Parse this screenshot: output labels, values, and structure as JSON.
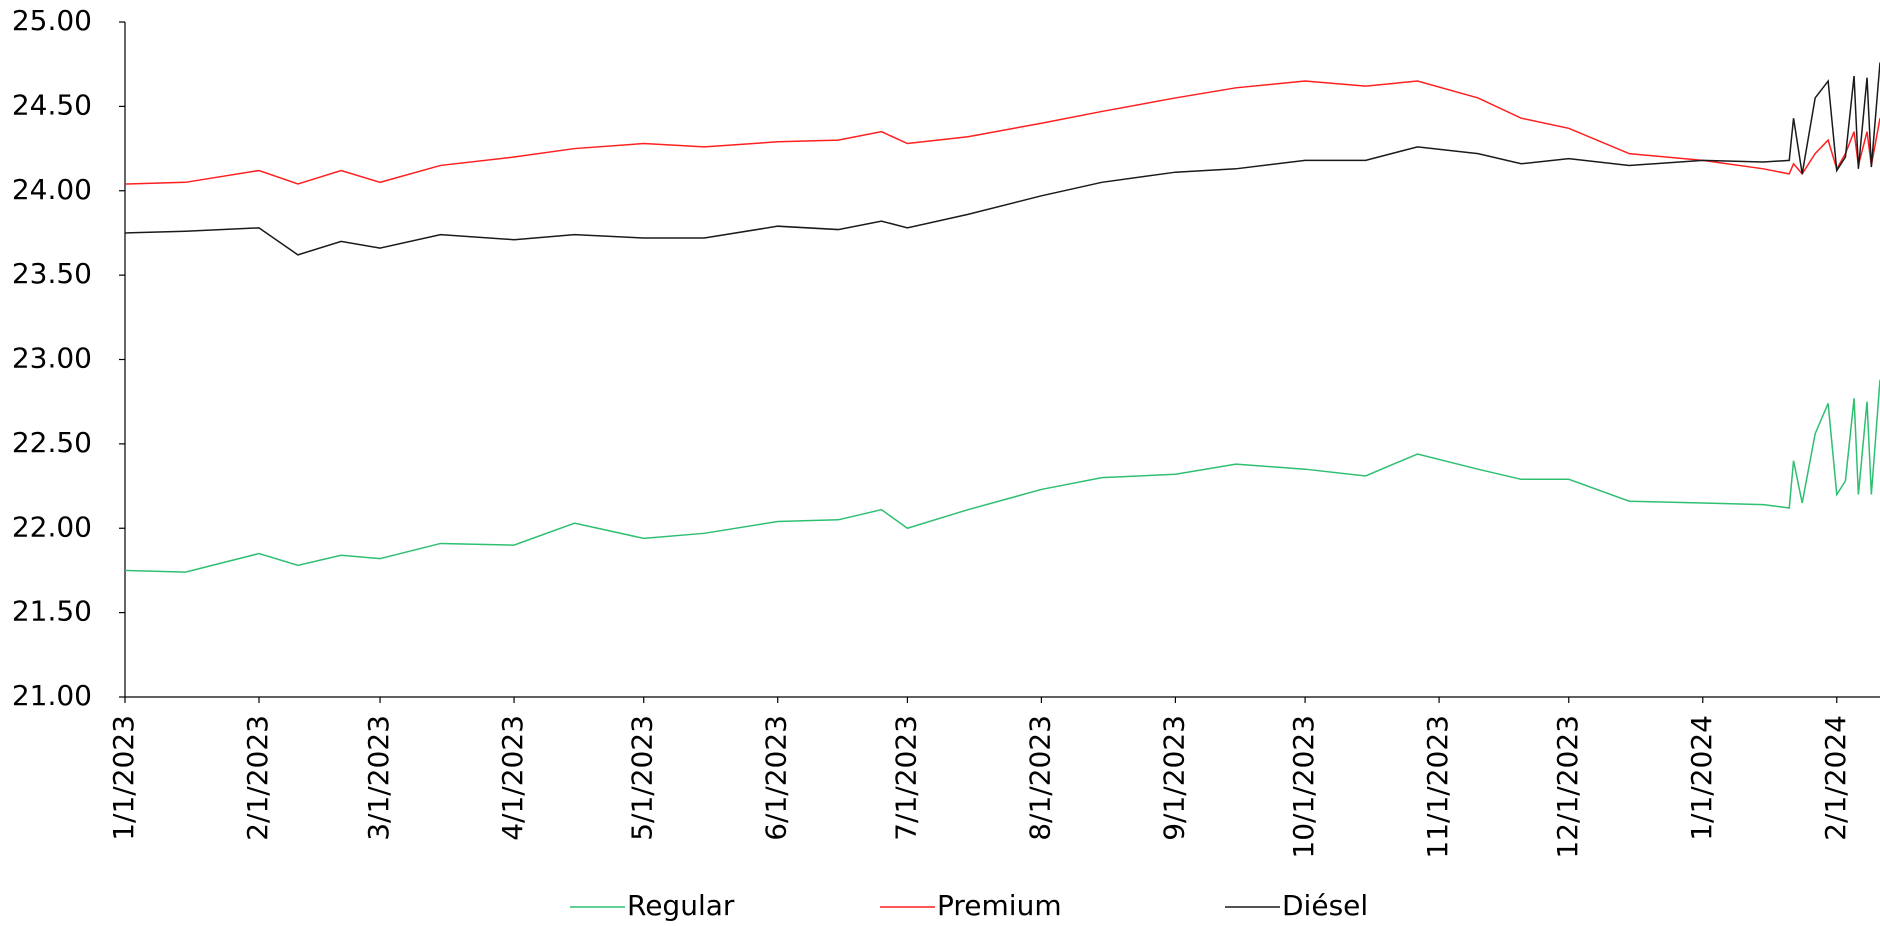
{
  "chart_data": {
    "type": "line",
    "x": [
      "1/1/2023",
      "1/15/2023",
      "2/1/2023",
      "2/10/2023",
      "2/20/2023",
      "3/1/2023",
      "3/15/2023",
      "4/1/2023",
      "4/15/2023",
      "5/1/2023",
      "5/15/2023",
      "6/1/2023",
      "6/15/2023",
      "6/25/2023",
      "7/1/2023",
      "7/15/2023",
      "8/1/2023",
      "8/15/2023",
      "9/1/2023",
      "9/15/2023",
      "10/1/2023",
      "10/15/2023",
      "10/27/2023",
      "11/10/2023",
      "11/20/2023",
      "12/1/2023",
      "12/15/2023",
      "1/1/2024",
      "1/15/2024",
      "1/21/2024",
      "1/22/2024",
      "1/24/2024",
      "1/27/2024",
      "1/30/2024",
      "2/1/2024",
      "2/3/2024",
      "2/5/2024",
      "2/6/2024",
      "2/8/2024",
      "2/9/2024",
      "2/11/2024"
    ],
    "series": [
      {
        "name": "Regular",
        "color": "#2fbf71",
        "values": [
          21.75,
          21.74,
          21.85,
          21.78,
          21.84,
          21.82,
          21.91,
          21.9,
          22.03,
          21.94,
          21.97,
          22.04,
          22.05,
          22.11,
          22.0,
          22.11,
          22.23,
          22.3,
          22.32,
          22.38,
          22.35,
          22.31,
          22.44,
          22.35,
          22.29,
          22.29,
          22.16,
          22.15,
          22.14,
          22.12,
          22.4,
          22.15,
          22.56,
          22.74,
          22.2,
          22.28,
          22.77,
          22.2,
          22.75,
          22.2,
          22.88
        ]
      },
      {
        "name": "Premium",
        "color": "#ff1f1f",
        "values": [
          24.04,
          24.05,
          24.12,
          24.04,
          24.12,
          24.05,
          24.15,
          24.2,
          24.25,
          24.28,
          24.26,
          24.29,
          24.3,
          24.35,
          24.28,
          24.32,
          24.4,
          24.47,
          24.55,
          24.61,
          24.65,
          24.62,
          24.65,
          24.55,
          24.43,
          24.37,
          24.22,
          24.18,
          24.13,
          24.1,
          24.16,
          24.1,
          24.22,
          24.3,
          24.13,
          24.22,
          24.35,
          24.15,
          24.35,
          24.15,
          24.43
        ]
      },
      {
        "name": "Diésel",
        "color": "#1a1a1a",
        "values": [
          23.75,
          23.76,
          23.78,
          23.62,
          23.7,
          23.66,
          23.74,
          23.71,
          23.74,
          23.72,
          23.72,
          23.79,
          23.77,
          23.82,
          23.78,
          23.86,
          23.97,
          24.05,
          24.11,
          24.13,
          24.18,
          24.18,
          24.26,
          24.22,
          24.16,
          24.19,
          24.15,
          24.18,
          24.17,
          24.18,
          24.43,
          24.1,
          24.55,
          24.65,
          24.12,
          24.2,
          24.68,
          24.13,
          24.67,
          24.14,
          24.76
        ]
      }
    ],
    "xlim": [
      "1/1/2023",
      "2/11/2024"
    ],
    "xticks": [
      "1/1/2023",
      "2/1/2023",
      "3/1/2023",
      "4/1/2023",
      "5/1/2023",
      "6/1/2023",
      "7/1/2023",
      "8/1/2023",
      "9/1/2023",
      "10/1/2023",
      "11/1/2023",
      "12/1/2023",
      "1/1/2024",
      "2/1/2024"
    ],
    "ylim": [
      21,
      25
    ],
    "yticks": [
      {
        "value": 21,
        "label": "21.00"
      },
      {
        "value": 21.5,
        "label": "21.50"
      },
      {
        "value": 22,
        "label": "22.00"
      },
      {
        "value": 22.5,
        "label": "22.50"
      },
      {
        "value": 23,
        "label": "23.00"
      },
      {
        "value": 23.5,
        "label": "23.50"
      },
      {
        "value": 24,
        "label": "24.00"
      },
      {
        "value": 24.5,
        "label": "24.50"
      },
      {
        "value": 25,
        "label": "25.00"
      }
    ],
    "grid": false,
    "legend": "bottom"
  }
}
